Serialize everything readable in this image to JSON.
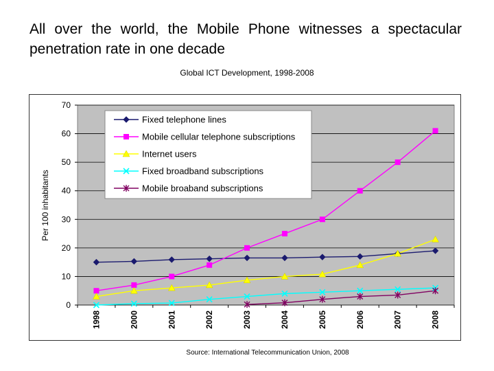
{
  "headline": "All over the world, the Mobile Phone witnesses a spectacular penetration rate in one decade",
  "chart_title": "Global ICT Development, 1998-2008",
  "source": "Source: International Telecommunication Union, 2008",
  "chart_data": {
    "type": "line",
    "title": "Global ICT Development, 1998-2008",
    "xlabel": "",
    "ylabel": "Per 100 inhabitants",
    "categories": [
      "1998",
      "2000",
      "2001",
      "2002",
      "2003",
      "2004",
      "2005",
      "2006",
      "2007",
      "2008"
    ],
    "ylim": [
      0,
      70
    ],
    "yticks": [
      0,
      10,
      20,
      30,
      40,
      50,
      60,
      70
    ],
    "grid": true,
    "legend_position": "top-left",
    "series": [
      {
        "name": "Fixed telephone lines",
        "color": "#1a1a6e",
        "marker": "diamond",
        "values": [
          15,
          15.3,
          15.9,
          16.2,
          16.5,
          16.5,
          16.8,
          17,
          18,
          19
        ]
      },
      {
        "name": "Mobile cellular telephone subscriptions",
        "color": "#ff00ff",
        "marker": "square",
        "values": [
          5,
          7,
          10,
          14,
          20,
          25,
          30,
          40,
          50,
          61
        ]
      },
      {
        "name": "Internet users",
        "color": "#ffff00",
        "marker": "triangle",
        "values": [
          3,
          5,
          6,
          7,
          8.7,
          10,
          10.8,
          14,
          18,
          23
        ]
      },
      {
        "name": "Fixed broadband subscriptions",
        "color": "#00ffff",
        "marker": "x",
        "values": [
          0,
          0.5,
          0.7,
          2,
          3,
          4,
          4.5,
          5,
          5.5,
          6
        ]
      },
      {
        "name": "Mobile broaband subscriptions",
        "color": "#800060",
        "marker": "star",
        "values": [
          null,
          null,
          null,
          null,
          0.2,
          0.8,
          2,
          3,
          3.5,
          5
        ]
      }
    ]
  }
}
